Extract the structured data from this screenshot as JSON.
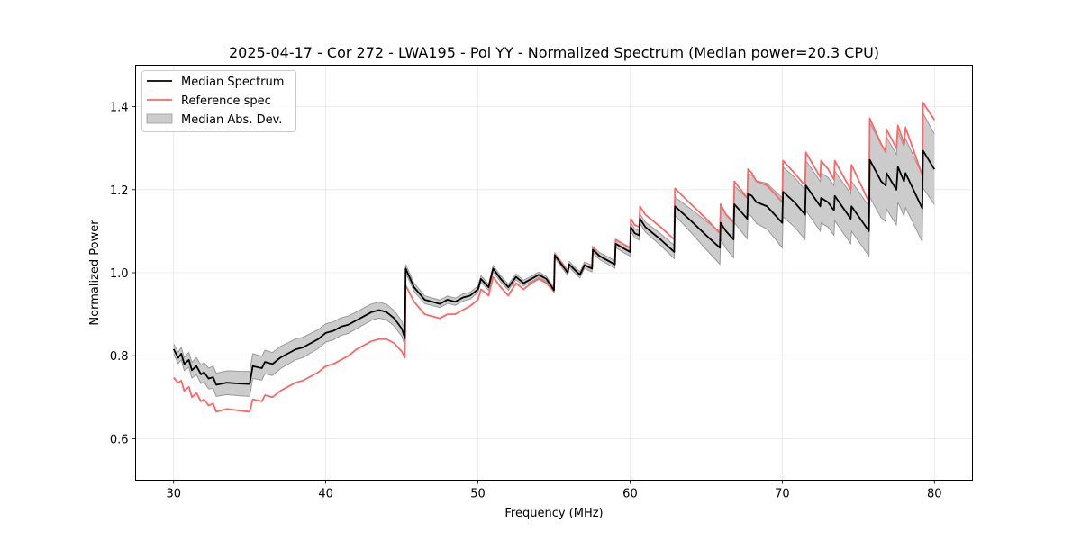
{
  "chart_data": {
    "type": "line",
    "title": "2025-04-17 - Cor 272 - LWA195 - Pol YY - Normalized Spectrum (Median power=20.3 CPU)",
    "xlabel": "Frequency (MHz)",
    "ylabel": "Normalized Power",
    "xlim": [
      27.5,
      82.5
    ],
    "ylim": [
      0.5,
      1.5
    ],
    "xticks": [
      30,
      40,
      50,
      60,
      70,
      80
    ],
    "xtick_labels": [
      "30",
      "40",
      "50",
      "60",
      "70",
      "80"
    ],
    "yticks": [
      0.6,
      0.8,
      1.0,
      1.2,
      1.4
    ],
    "ytick_labels": [
      "0.6",
      "0.8",
      "1.0",
      "1.2",
      "1.4"
    ],
    "grid": true,
    "legend_position": "top-left",
    "legend": [
      {
        "label": "Median Spectrum",
        "kind": "line",
        "color": "#000000"
      },
      {
        "label": "Reference spec",
        "kind": "line",
        "color": "#ff6666"
      },
      {
        "label": "Median Abs. Dev.",
        "kind": "band",
        "color": "#cccccc"
      }
    ],
    "series": [
      {
        "name": "Median Spectrum",
        "color": "#000000",
        "x": [
          30.0,
          30.3,
          30.5,
          30.7,
          31.0,
          31.2,
          31.5,
          31.8,
          32.0,
          32.3,
          32.6,
          32.8,
          33.5,
          34.3,
          35.0,
          35.2,
          35.8,
          36.0,
          36.5,
          37.0,
          37.5,
          38.0,
          38.5,
          39.0,
          39.5,
          40.0,
          40.5,
          41.0,
          41.5,
          42.0,
          42.5,
          43.0,
          43.5,
          44.0,
          44.5,
          45.0,
          45.2,
          45.25,
          45.8,
          46.5,
          47.0,
          47.5,
          48.0,
          48.5,
          49.0,
          49.5,
          50.0,
          50.2,
          50.7,
          51.0,
          51.5,
          52.0,
          52.5,
          53.0,
          53.5,
          54.0,
          54.5,
          55.0,
          55.05,
          55.9,
          56.0,
          56.7,
          57.0,
          57.5,
          57.55,
          58.0,
          58.5,
          59.0,
          59.05,
          59.5,
          60.0,
          60.05,
          60.3,
          60.6,
          60.65,
          61.0,
          62.0,
          62.9,
          62.95,
          64.0,
          65.0,
          65.9,
          65.95,
          66.3,
          66.8,
          66.85,
          67.7,
          67.75,
          68.0,
          68.3,
          69.0,
          69.5,
          70.0,
          70.05,
          70.8,
          71.5,
          71.55,
          72.5,
          72.55,
          73.0,
          73.4,
          73.45,
          74.5,
          74.55,
          75.7,
          75.75,
          76.5,
          76.8,
          76.85,
          77.5,
          77.6,
          78.0,
          78.1,
          79.2,
          79.25,
          80.0
        ],
        "values": [
          0.816,
          0.795,
          0.805,
          0.78,
          0.79,
          0.765,
          0.775,
          0.755,
          0.76,
          0.745,
          0.748,
          0.73,
          0.735,
          0.733,
          0.732,
          0.775,
          0.77,
          0.785,
          0.78,
          0.795,
          0.805,
          0.815,
          0.82,
          0.83,
          0.84,
          0.855,
          0.86,
          0.87,
          0.875,
          0.885,
          0.895,
          0.905,
          0.91,
          0.905,
          0.89,
          0.865,
          0.842,
          1.01,
          0.965,
          0.935,
          0.93,
          0.925,
          0.935,
          0.93,
          0.94,
          0.945,
          0.96,
          0.985,
          0.965,
          1.01,
          0.985,
          0.965,
          0.99,
          0.975,
          0.985,
          0.995,
          0.985,
          0.958,
          1.042,
          1.0,
          1.02,
          0.995,
          1.018,
          1.01,
          1.055,
          1.04,
          1.03,
          1.02,
          1.07,
          1.06,
          1.05,
          1.11,
          1.095,
          1.09,
          1.13,
          1.11,
          1.08,
          1.05,
          1.16,
          1.125,
          1.09,
          1.06,
          1.12,
          1.1,
          1.08,
          1.165,
          1.13,
          1.19,
          1.185,
          1.17,
          1.16,
          1.14,
          1.12,
          1.195,
          1.17,
          1.14,
          1.21,
          1.16,
          1.18,
          1.17,
          1.15,
          1.185,
          1.13,
          1.16,
          1.1,
          1.272,
          1.22,
          1.21,
          1.24,
          1.2,
          1.255,
          1.22,
          1.24,
          1.155,
          1.294,
          1.249
        ]
      },
      {
        "name": "Reference spec",
        "color": "#ff6666",
        "x": [
          30.0,
          30.3,
          30.5,
          30.7,
          31.0,
          31.2,
          31.5,
          31.8,
          32.0,
          32.3,
          32.6,
          32.8,
          33.5,
          34.3,
          35.0,
          35.2,
          35.8,
          36.0,
          36.5,
          37.0,
          37.5,
          38.0,
          38.5,
          39.0,
          39.5,
          40.0,
          40.5,
          41.0,
          41.5,
          42.0,
          42.5,
          43.0,
          43.5,
          44.0,
          44.5,
          45.0,
          45.2,
          45.25,
          45.8,
          46.5,
          47.0,
          47.5,
          48.0,
          48.5,
          49.0,
          49.5,
          50.0,
          50.2,
          50.7,
          51.0,
          51.5,
          52.0,
          52.5,
          53.0,
          53.5,
          54.0,
          54.5,
          55.0,
          55.05,
          55.9,
          56.0,
          56.7,
          57.0,
          57.5,
          57.55,
          58.0,
          58.5,
          59.0,
          59.05,
          59.5,
          60.0,
          60.05,
          60.3,
          60.6,
          60.65,
          61.0,
          62.0,
          62.9,
          62.95,
          64.0,
          65.0,
          65.9,
          65.95,
          66.3,
          66.8,
          66.85,
          67.7,
          67.75,
          68.0,
          68.3,
          69.0,
          69.5,
          70.0,
          70.05,
          70.8,
          71.5,
          71.55,
          72.5,
          72.55,
          73.0,
          73.4,
          73.45,
          74.5,
          74.55,
          75.7,
          75.75,
          76.5,
          76.8,
          76.85,
          77.5,
          77.6,
          78.0,
          78.1,
          79.2,
          79.25,
          80.0
        ],
        "values": [
          0.747,
          0.735,
          0.74,
          0.715,
          0.725,
          0.7,
          0.71,
          0.69,
          0.695,
          0.68,
          0.685,
          0.665,
          0.672,
          0.668,
          0.665,
          0.695,
          0.69,
          0.705,
          0.7,
          0.715,
          0.725,
          0.735,
          0.74,
          0.75,
          0.76,
          0.775,
          0.78,
          0.79,
          0.8,
          0.815,
          0.825,
          0.835,
          0.84,
          0.84,
          0.83,
          0.81,
          0.795,
          0.97,
          0.93,
          0.9,
          0.895,
          0.89,
          0.9,
          0.9,
          0.91,
          0.92,
          0.935,
          0.96,
          0.945,
          0.99,
          0.965,
          0.945,
          0.975,
          0.96,
          0.975,
          0.985,
          0.975,
          0.955,
          1.045,
          1.005,
          1.02,
          0.995,
          1.02,
          1.01,
          1.06,
          1.04,
          1.03,
          1.02,
          1.08,
          1.07,
          1.06,
          1.13,
          1.115,
          1.11,
          1.16,
          1.14,
          1.11,
          1.08,
          1.203,
          1.165,
          1.13,
          1.095,
          1.165,
          1.14,
          1.12,
          1.22,
          1.18,
          1.25,
          1.24,
          1.22,
          1.21,
          1.19,
          1.17,
          1.27,
          1.24,
          1.21,
          1.29,
          1.23,
          1.27,
          1.25,
          1.225,
          1.27,
          1.2,
          1.26,
          1.17,
          1.372,
          1.31,
          1.29,
          1.345,
          1.3,
          1.355,
          1.31,
          1.35,
          1.235,
          1.41,
          1.368
        ]
      }
    ],
    "band": {
      "name": "Median Abs. Dev.",
      "color": "#cccccc",
      "edge_color": "#999999",
      "x": [
        30.0,
        32.8,
        35.0,
        40.0,
        45.2,
        45.25,
        50.0,
        55.0,
        60.0,
        62.9,
        62.95,
        66.0,
        70.0,
        75.7,
        75.75,
        79.2,
        79.25,
        80.0
      ],
      "half_width": [
        0.012,
        0.028,
        0.03,
        0.022,
        0.018,
        0.01,
        0.008,
        0.006,
        0.01,
        0.016,
        0.022,
        0.04,
        0.06,
        0.06,
        0.09,
        0.08,
        0.09,
        0.085
      ]
    }
  }
}
